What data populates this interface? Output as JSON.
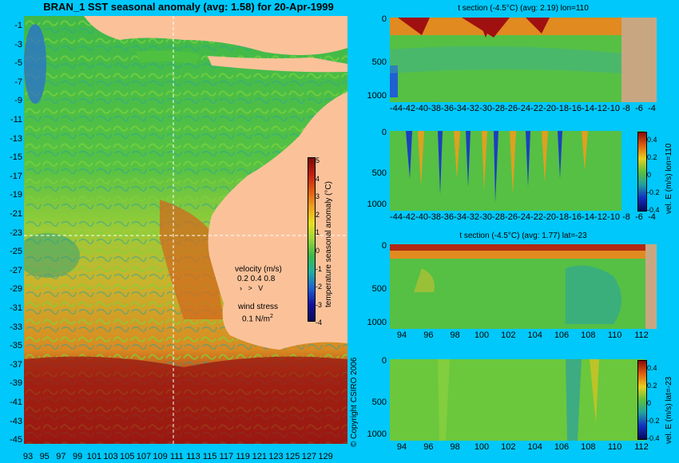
{
  "title": "BRAN_1 SST seasonal anomaly (avg: 1.58) for 20-Apr-1999",
  "map": {
    "lat_ticks": [
      "-1",
      "-3",
      "-5",
      "-7",
      "-9",
      "-11",
      "-13",
      "-15",
      "-17",
      "-19",
      "-21",
      "-23",
      "-25",
      "-27",
      "-29",
      "-31",
      "-33",
      "-35",
      "-37",
      "-39",
      "-41",
      "-43",
      "-45"
    ],
    "lon_ticks": [
      "93",
      "95",
      "97",
      "99",
      "101",
      "103",
      "105",
      "107",
      "109",
      "111",
      "113",
      "115",
      "117",
      "119",
      "121",
      "123",
      "125",
      "127",
      "129"
    ],
    "crosshair": {
      "lat": -23,
      "lon": 110
    }
  },
  "colorbar": {
    "label": "temperature seasonal anomaly (°C)",
    "ticks": [
      "5",
      "4",
      "3",
      "2",
      "1",
      "0",
      "-1",
      "-2",
      "-3",
      "-4"
    ]
  },
  "velocity_legend": {
    "title": "velocity (m/s)",
    "values": "0.2 0.4 0.8",
    "wind_title": "wind stress",
    "wind_value": "0.1 N/m",
    "wind_sup": "2"
  },
  "copyright": "© Copyright CSIRO 2006",
  "panels": [
    {
      "title": "t section (-4.5°C) (avg: 2.19) lon=110",
      "y_ticks": [
        "0",
        "500",
        "1000"
      ],
      "x_ticks": [
        "-44",
        "-42",
        "-40",
        "-38",
        "-36",
        "-34",
        "-32",
        "-30",
        "-28",
        "-26",
        "-24",
        "-22",
        "-20",
        "-18",
        "-16",
        "-14",
        "-12",
        "-10",
        "-8",
        "-6",
        "-4"
      ],
      "side_label": "",
      "cbar_ticks": []
    },
    {
      "title": "",
      "y_ticks": [
        "0",
        "500",
        "1000"
      ],
      "x_ticks": [
        "-44",
        "-42",
        "-40",
        "-38",
        "-36",
        "-34",
        "-32",
        "-30",
        "-28",
        "-26",
        "-24",
        "-22",
        "-20",
        "-18",
        "-16",
        "-14",
        "-12",
        "-10",
        "-8",
        "-6",
        "-4"
      ],
      "side_label": "vel. E (m/s) lon=110",
      "cbar_ticks": [
        "0.4",
        "0.2",
        "0",
        "-0.2",
        "-0.4"
      ]
    },
    {
      "title": "t section (-4.5°C) (avg: 1.77) lat=-23",
      "y_ticks": [
        "0",
        "500",
        "1000"
      ],
      "x_ticks": [
        "94",
        "96",
        "98",
        "100",
        "102",
        "104",
        "106",
        "108",
        "110",
        "112"
      ],
      "side_label": "",
      "cbar_ticks": []
    },
    {
      "title": "",
      "y_ticks": [
        "0",
        "500",
        "1000"
      ],
      "x_ticks": [
        "94",
        "96",
        "98",
        "100",
        "102",
        "104",
        "106",
        "108",
        "110",
        "112"
      ],
      "side_label": "vel. E (m/s) lat=-23",
      "cbar_ticks": [
        "0.4",
        "0.2",
        "0",
        "-0.2",
        "-0.4"
      ]
    }
  ]
}
